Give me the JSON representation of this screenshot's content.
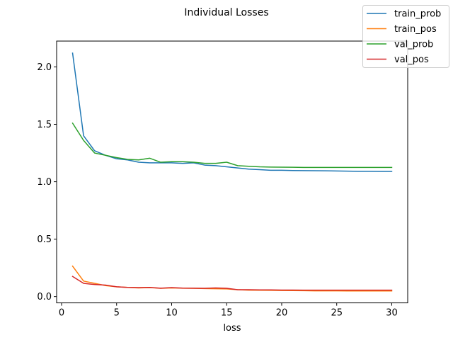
{
  "chart_data": {
    "type": "line",
    "title": "Individual Losses",
    "xlabel": "loss",
    "ylabel": "",
    "xlim": [
      -0.45,
      31.45
    ],
    "ylim": [
      -0.055,
      2.225
    ],
    "xticks": [
      0,
      5,
      10,
      15,
      20,
      25,
      30
    ],
    "yticks": [
      0.0,
      0.5,
      1.0,
      1.5,
      2.0
    ],
    "xtick_labels": [
      "0",
      "5",
      "10",
      "15",
      "20",
      "25",
      "30"
    ],
    "ytick_labels": [
      "0.0",
      "0.5",
      "1.0",
      "1.5",
      "2.0"
    ],
    "grid": false,
    "legend_position": "top-right",
    "x": [
      1,
      2,
      3,
      4,
      5,
      6,
      7,
      8,
      9,
      10,
      11,
      12,
      13,
      14,
      15,
      16,
      17,
      18,
      19,
      20,
      21,
      22,
      23,
      24,
      25,
      26,
      27,
      28,
      29,
      30
    ],
    "series": [
      {
        "name": "train_prob",
        "color": "#1f77b4",
        "values": [
          2.12,
          1.4,
          1.27,
          1.23,
          1.2,
          1.19,
          1.17,
          1.165,
          1.165,
          1.165,
          1.16,
          1.165,
          1.145,
          1.14,
          1.13,
          1.12,
          1.11,
          1.105,
          1.1,
          1.1,
          1.098,
          1.097,
          1.096,
          1.095,
          1.094,
          1.092,
          1.091,
          1.091,
          1.09,
          1.09
        ]
      },
      {
        "name": "train_pos",
        "color": "#ff7f0e",
        "values": [
          0.265,
          0.135,
          0.115,
          0.095,
          0.085,
          0.08,
          0.075,
          0.078,
          0.072,
          0.075,
          0.073,
          0.072,
          0.07,
          0.068,
          0.067,
          0.06,
          0.056,
          0.055,
          0.054,
          0.053,
          0.052,
          0.051,
          0.05,
          0.05,
          0.05,
          0.049,
          0.049,
          0.049,
          0.049,
          0.049
        ]
      },
      {
        "name": "val_prob",
        "color": "#2ca02c",
        "values": [
          1.51,
          1.36,
          1.25,
          1.23,
          1.21,
          1.195,
          1.19,
          1.205,
          1.17,
          1.175,
          1.175,
          1.17,
          1.16,
          1.16,
          1.17,
          1.14,
          1.135,
          1.13,
          1.128,
          1.127,
          1.126,
          1.125,
          1.125,
          1.125,
          1.125,
          1.125,
          1.125,
          1.125,
          1.125,
          1.125
        ]
      },
      {
        "name": "val_pos",
        "color": "#d62728",
        "values": [
          0.175,
          0.115,
          0.105,
          0.1,
          0.085,
          0.08,
          0.078,
          0.08,
          0.073,
          0.078,
          0.074,
          0.073,
          0.072,
          0.075,
          0.072,
          0.06,
          0.06,
          0.058,
          0.058,
          0.057,
          0.057,
          0.056,
          0.056,
          0.056,
          0.056,
          0.056,
          0.056,
          0.056,
          0.056,
          0.056
        ]
      }
    ]
  }
}
